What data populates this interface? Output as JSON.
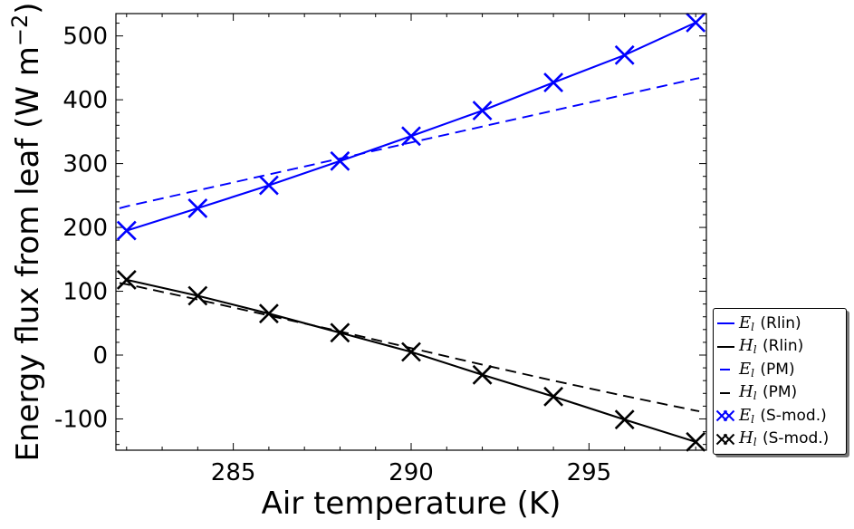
{
  "chart_data": {
    "type": "line",
    "title": "",
    "xlabel": "Air temperature (K)",
    "ylabel": "Energy flux from leaf (W m⁻²)",
    "xlim": [
      281.7,
      298.3
    ],
    "ylim": [
      -149,
      535
    ],
    "xticks": [
      285,
      290,
      295
    ],
    "yticks": [
      -100,
      0,
      100,
      200,
      300,
      400,
      500
    ],
    "x_minor_step": 1,
    "y_minor_step": 20,
    "grid": false,
    "colors": {
      "blue": "#0000ff",
      "black": "#000000"
    },
    "series": [
      {
        "name": "E_l (Rlin)",
        "color": "#0000ff",
        "style": "solid",
        "x": [
          282,
          284,
          286,
          288,
          290,
          292,
          294,
          296,
          298
        ],
        "y": [
          195,
          230,
          266,
          304,
          343,
          383,
          427,
          470,
          521
        ]
      },
      {
        "name": "H_l (Rlin)",
        "color": "#000000",
        "style": "solid",
        "x": [
          282,
          284,
          286,
          288,
          290,
          292,
          294,
          296,
          298
        ],
        "y": [
          118,
          93,
          65,
          35,
          5,
          -31,
          -65,
          -101,
          -136
        ]
      },
      {
        "name": "E_l (PM)",
        "color": "#0000ff",
        "style": "dashed",
        "x": [
          281.8,
          282,
          284,
          286,
          288,
          290,
          292,
          294,
          296,
          298,
          298.1
        ],
        "y": [
          230,
          233,
          258,
          283,
          308,
          333,
          358,
          383,
          408,
          433,
          434
        ]
      },
      {
        "name": "H_l (PM)",
        "color": "#000000",
        "style": "dashed",
        "x": [
          281.8,
          282,
          284,
          286,
          288,
          290,
          292,
          294,
          296,
          298,
          298.1
        ],
        "y": [
          113,
          111,
          87,
          62,
          37,
          11,
          -15,
          -40,
          -64,
          -87,
          -88
        ]
      },
      {
        "name": "E_l (S-mod.)",
        "color": "#0000ff",
        "style": "markers",
        "marker": "x",
        "x": [
          282,
          284,
          286,
          288,
          290,
          292,
          294,
          296,
          298
        ],
        "y": [
          195,
          230,
          266,
          304,
          343,
          383,
          427,
          470,
          521
        ]
      },
      {
        "name": "H_l (S-mod.)",
        "color": "#000000",
        "style": "markers",
        "marker": "x",
        "x": [
          282,
          284,
          286,
          288,
          290,
          292,
          294,
          296,
          298
        ],
        "y": [
          118,
          93,
          65,
          35,
          5,
          -31,
          -65,
          -101,
          -136
        ]
      }
    ],
    "legend": {
      "position": "lower-right-outside-axes",
      "entries": [
        {
          "label": "E_l (Rlin)",
          "color": "#0000ff",
          "sample": "solid"
        },
        {
          "label": "H_l (Rlin)",
          "color": "#000000",
          "sample": "solid"
        },
        {
          "label": "E_l (PM)",
          "color": "#0000ff",
          "sample": "dashed"
        },
        {
          "label": "H_l (PM)",
          "color": "#000000",
          "sample": "dashed"
        },
        {
          "label": "E_l (S-mod.)",
          "color": "#0000ff",
          "sample": "markers"
        },
        {
          "label": "H_l (S-mod.)",
          "color": "#000000",
          "sample": "markers"
        }
      ]
    }
  }
}
